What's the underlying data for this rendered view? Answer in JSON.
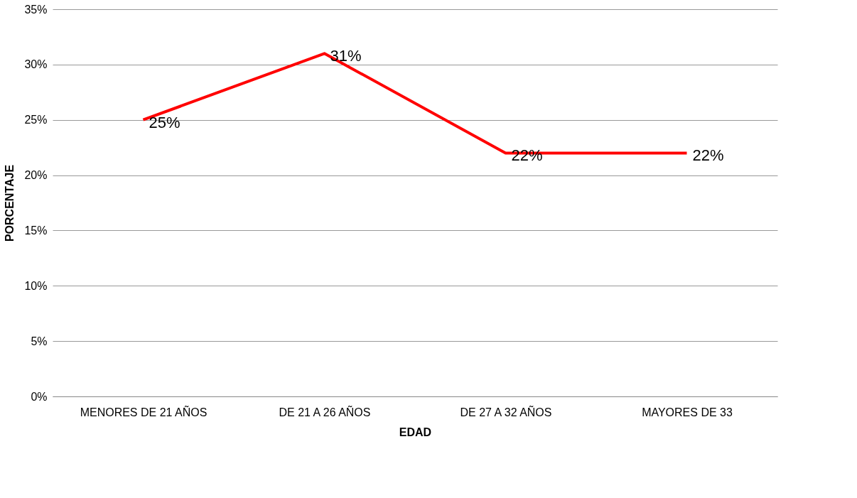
{
  "chart_data": {
    "type": "line",
    "xlabel": "EDAD",
    "ylabel": "PORCENTAJE",
    "categories": [
      "MENORES DE 21 AÑOS",
      "DE 21 A 26 AÑOS",
      "DE 27 A 32 AÑOS",
      "MAYORES DE 33"
    ],
    "series": [
      {
        "color": "#ff0000",
        "values": [
          25,
          31,
          22,
          22
        ],
        "value_labels": [
          "25%",
          "31%",
          "22%",
          "22%"
        ]
      }
    ],
    "ylim": [
      0,
      35
    ],
    "yticks": [
      {
        "value": 0,
        "label": "0%"
      },
      {
        "value": 5,
        "label": "5%"
      },
      {
        "value": 10,
        "label": "10%"
      },
      {
        "value": 15,
        "label": "15%"
      },
      {
        "value": 20,
        "label": "20%"
      },
      {
        "value": 25,
        "label": "25%"
      },
      {
        "value": 30,
        "label": "30%"
      },
      {
        "value": 35,
        "label": "35%"
      }
    ],
    "grid": "y",
    "marker": "none",
    "line_style": "solid"
  }
}
